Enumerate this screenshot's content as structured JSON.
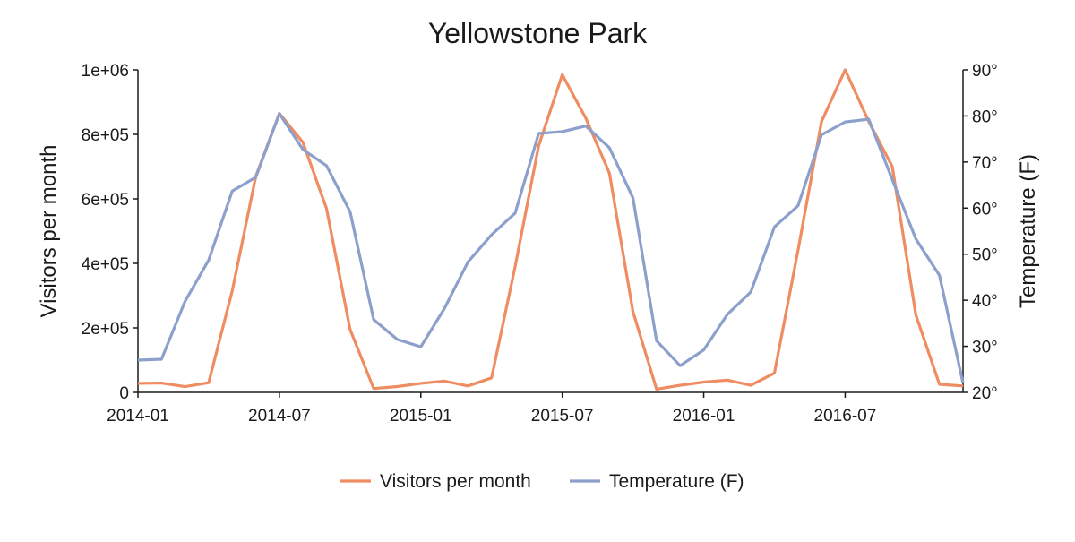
{
  "chart_data": {
    "type": "line",
    "title": "Yellowstone Park",
    "ylabel": "Visitors per month",
    "y2label": "Temperature (F)",
    "ylim": [
      0,
      1000000
    ],
    "y2lim": [
      20,
      90
    ],
    "x_tick_labels": [
      "2014-01",
      "2014-07",
      "2015-01",
      "2015-07",
      "2016-01",
      "2016-07"
    ],
    "x": [
      "2014-01",
      "2014-02",
      "2014-03",
      "2014-04",
      "2014-05",
      "2014-06",
      "2014-07",
      "2014-08",
      "2014-09",
      "2014-10",
      "2014-11",
      "2014-12",
      "2015-01",
      "2015-02",
      "2015-03",
      "2015-04",
      "2015-05",
      "2015-06",
      "2015-07",
      "2015-08",
      "2015-09",
      "2015-10",
      "2015-11",
      "2015-12",
      "2016-01",
      "2016-02",
      "2016-03",
      "2016-04",
      "2016-05",
      "2016-06",
      "2016-07",
      "2016-08",
      "2016-09",
      "2016-10",
      "2016-11",
      "2016-12"
    ],
    "y_tick_labels": [
      "0",
      "2e+05",
      "4e+05",
      "6e+05",
      "8e+05",
      "1e+06"
    ],
    "y2_tick_labels": [
      "20°",
      "30°",
      "40°",
      "50°",
      "60°",
      "70°",
      "80°",
      "90°"
    ],
    "legend_position": "bottom",
    "grid": false,
    "series": [
      {
        "name": "Visitors per month",
        "axis": "left",
        "color": "#ef8c61",
        "values": [
          28000,
          29000,
          18000,
          30000,
          315000,
          670000,
          865000,
          775000,
          570000,
          195000,
          12000,
          18000,
          28000,
          35000,
          20000,
          45000,
          390000,
          765000,
          985000,
          850000,
          680000,
          250000,
          10000,
          22000,
          32000,
          38000,
          22000,
          60000,
          440000,
          840000,
          1000000,
          840000,
          700000,
          240000,
          25000,
          20000
        ]
      },
      {
        "name": "Temperature (F)",
        "axis": "right",
        "color": "#8da0cb",
        "values": [
          27,
          27.2,
          39.8,
          48.7,
          63.7,
          66.7,
          80.5,
          72.7,
          69.2,
          59.2,
          35.8,
          31.5,
          29.9,
          38.2,
          48.3,
          54.2,
          58.9,
          76.2,
          76.6,
          77.8,
          73.1,
          62.2,
          31.2,
          25.8,
          29.2,
          36.9,
          41.8,
          55.9,
          60.5,
          75.9,
          78.7,
          79.3,
          66.2,
          53.3,
          45.4,
          22.0
        ]
      }
    ]
  }
}
